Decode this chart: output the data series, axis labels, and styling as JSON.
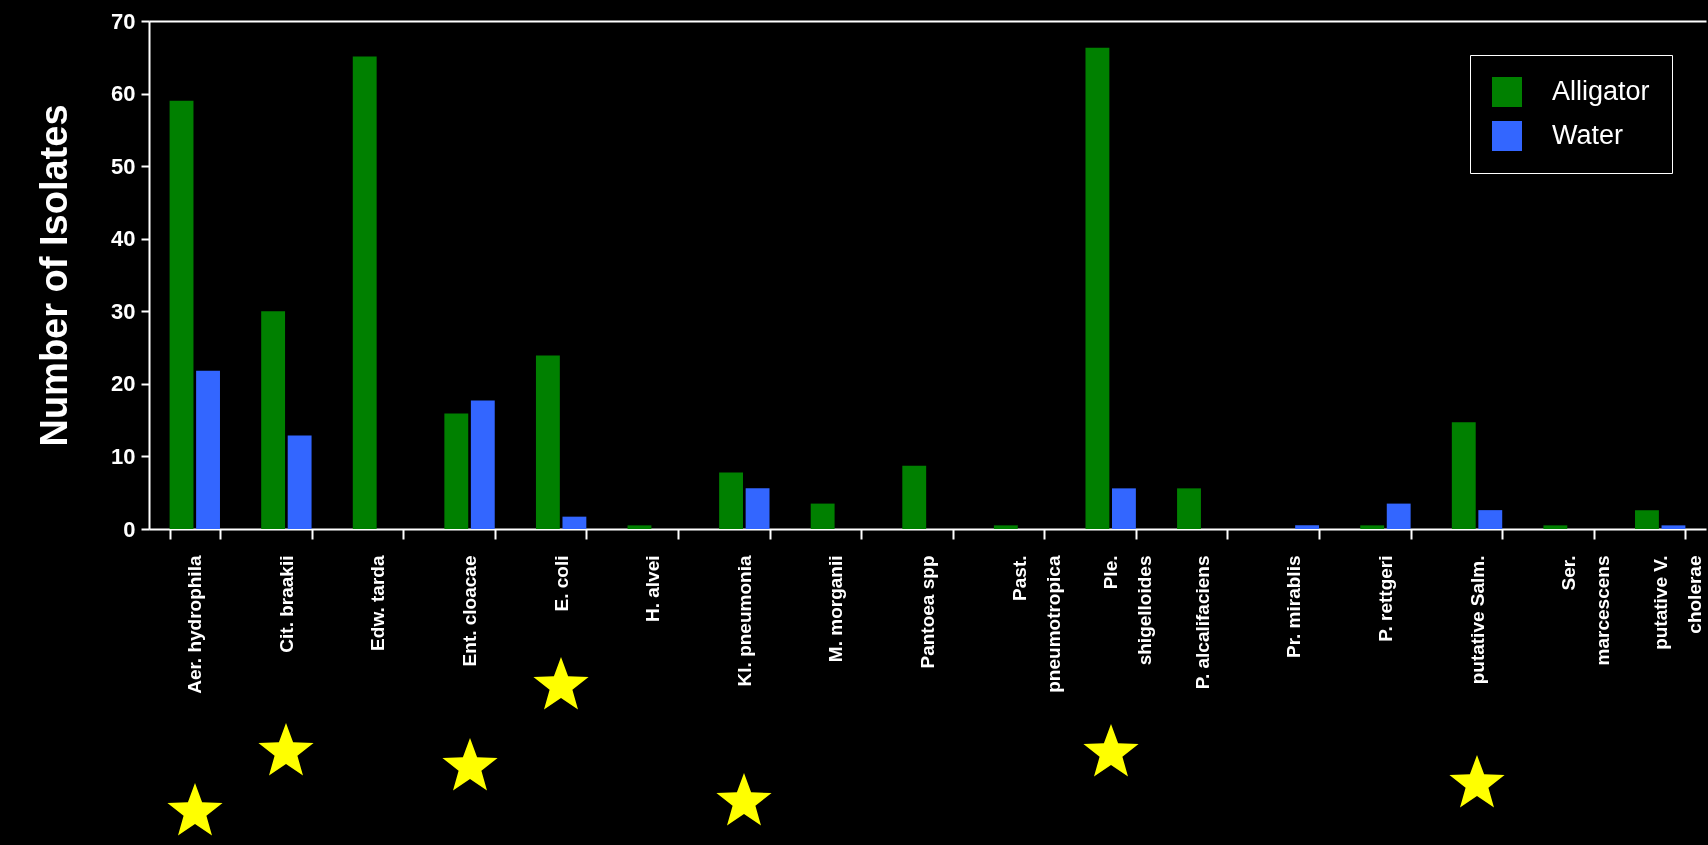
{
  "chart_data": {
    "type": "bar",
    "ylabel": "Number of Isolates",
    "categories": [
      "Aer. hydrophila",
      "Cit. braakii",
      "Edw. tarda",
      "Ent. cloacae",
      "E. coli",
      "H. alvei",
      "Kl. pneumonia",
      "M. morganii",
      "Pantoea spp",
      "Past.\npneumotropica",
      "Ple.\nshigelloides",
      "P. alcalifaciens",
      "Pr. mirablis",
      "P. rettgeri",
      "putative Salm.",
      "Ser.\nmarcescens",
      "putative V.\ncholerae"
    ],
    "series": [
      {
        "name": "Alligator",
        "color": "#008000",
        "values": [
          59,
          30,
          65.1,
          15.9,
          23.9,
          0.5,
          7.8,
          3.5,
          8.7,
          0.5,
          66.3,
          5.6,
          0,
          0.5,
          14.7,
          0.5,
          2.6
        ]
      },
      {
        "name": "Water",
        "color": "#3366ff",
        "values": [
          21.8,
          12.9,
          0,
          17.7,
          1.7,
          0,
          5.6,
          0,
          0,
          0,
          5.6,
          0,
          0.5,
          3.5,
          2.6,
          0,
          0.5
        ]
      }
    ],
    "ylim": [
      0,
      70
    ],
    "yticks": [
      0,
      10,
      20,
      30,
      40,
      50,
      60,
      70
    ],
    "grid": false,
    "legend": "top right"
  }
}
